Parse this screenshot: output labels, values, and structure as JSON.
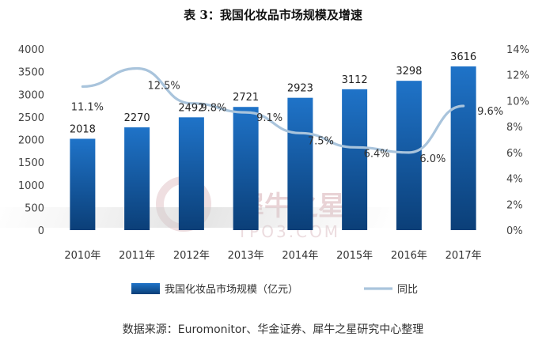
{
  "title": "表 3：我国化妆品市场规模及增速",
  "footer": "数据来源：Euromonitor、华金证券、犀牛之星研究中心整理",
  "watermark": {
    "text": "犀牛之星",
    "sub": "TPO3.COM"
  },
  "chart_data": {
    "type": "bar",
    "categories": [
      "2010年",
      "2011年",
      "2012年",
      "2013年",
      "2014年",
      "2015年",
      "2016年",
      "2017年"
    ],
    "series": [
      {
        "name": "我国化妆品市场规模（亿元）",
        "type": "bar",
        "axis": "left",
        "values": [
          2018,
          2270,
          2492,
          2721,
          2923,
          3112,
          3298,
          3616
        ],
        "labels": [
          "2018",
          "2270",
          "2492",
          "2721",
          "2923",
          "3112",
          "3298",
          "3616"
        ]
      },
      {
        "name": "同比",
        "type": "line",
        "axis": "right",
        "values": [
          11.1,
          12.5,
          9.8,
          9.1,
          7.5,
          6.4,
          6.0,
          9.6
        ],
        "labels": [
          "11.1%",
          "12.5%",
          "9.8%",
          "9.1%",
          "7.5%",
          "6.4%",
          "6.0%",
          "9.6%"
        ]
      }
    ],
    "y_left": {
      "lim": [
        0,
        4000
      ],
      "ticks": [
        "0",
        "500",
        "1000",
        "1500",
        "2000",
        "2500",
        "3000",
        "3500",
        "4000"
      ]
    },
    "y_right": {
      "lim": [
        0,
        14
      ],
      "ticks": [
        "0%",
        "2%",
        "4%",
        "6%",
        "8%",
        "10%",
        "12%",
        "14%"
      ]
    },
    "grid": false,
    "legend_position": "bottom",
    "colors": {
      "bar_top": "#1f73c8",
      "bar_bottom": "#0b3f78",
      "line": "#a9c4dc"
    }
  }
}
